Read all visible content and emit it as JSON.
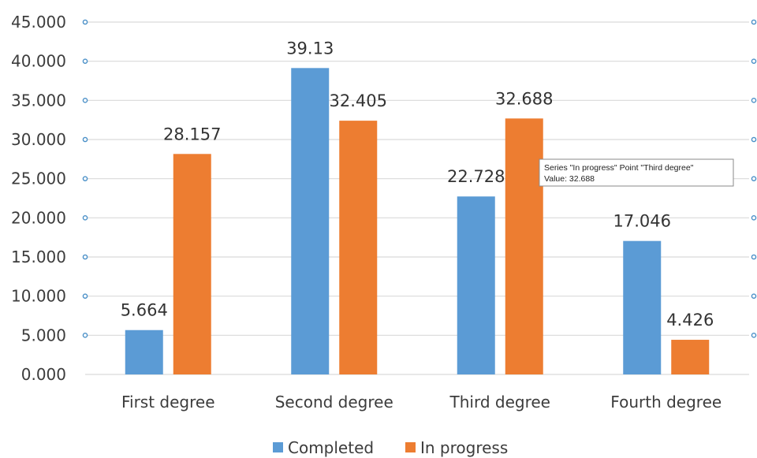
{
  "chart_data": {
    "type": "bar",
    "categories": [
      "First degree",
      "Second degree",
      "Third degree",
      "Fourth degree"
    ],
    "series": [
      {
        "name": "Completed",
        "color": "#5b9bd5",
        "values": [
          5.664,
          39.13,
          22.728,
          17.046
        ],
        "labels": [
          "5.664",
          "39.13",
          "22.728",
          "17.046"
        ]
      },
      {
        "name": "In progress",
        "color": "#ed7d31",
        "values": [
          28.157,
          32.405,
          32.688,
          4.426
        ],
        "labels": [
          "28.157",
          "32.405",
          "32.688",
          "4.426"
        ]
      }
    ],
    "ylim": [
      0,
      45
    ],
    "yticks": [
      0,
      5,
      10,
      15,
      20,
      25,
      30,
      35,
      40,
      45
    ],
    "ytick_labels": [
      "0.000",
      "5.000",
      "10.000",
      "15.000",
      "20.000",
      "25.000",
      "30.000",
      "35.000",
      "40.000",
      "45.000"
    ],
    "grid": true,
    "gridline_color": "#d9d9d9",
    "legend_position": "bottom",
    "tooltip": {
      "line1": "Series \"In progress\" Point \"Third degree\"",
      "line2": "Value: 32.688"
    }
  }
}
